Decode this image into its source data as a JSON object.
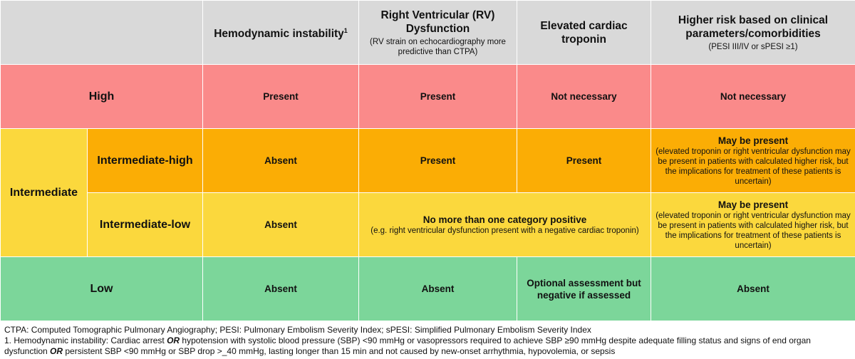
{
  "headers": {
    "hemodynamic": {
      "label": "Hemodynamic instability",
      "sup": "1"
    },
    "rv": {
      "label": "Right Ventricular (RV) Dysfunction",
      "sub": "(RV strain on echocardiography more predictive than CTPA)"
    },
    "troponin": {
      "label": "Elevated cardiac troponin"
    },
    "clinical": {
      "label": "Higher risk based on clinical parameters/comorbidities",
      "sub": "(PESI III/IV or sPESI ≥1)"
    }
  },
  "rows": {
    "high": {
      "label": "High",
      "hemodynamic": "Present",
      "rv": "Present",
      "troponin": "Not necessary",
      "clinical": "Not necessary"
    },
    "intermediate": {
      "label": "Intermediate"
    },
    "intermediate_high": {
      "label": "Intermediate-high",
      "hemodynamic": "Absent",
      "rv": "Present",
      "troponin": "Present",
      "clinical": "May be present",
      "clinical_sub": "(elevated troponin or right ventricular dysfunction may be present in patients with calculated higher risk, but the implications for treatment of these patients is uncertain)"
    },
    "intermediate_low": {
      "label": "Intermediate-low",
      "hemodynamic": "Absent",
      "rv_troponin": "No more than one category positive",
      "rv_troponin_sub": "(e.g. right ventricular dysfunction present with a negative cardiac troponin)",
      "clinical": "May be present",
      "clinical_sub": "(elevated troponin or right ventricular dysfunction may be present in patients with calculated higher risk, but the implications for treatment of these patients is uncertain)"
    },
    "low": {
      "label": "Low",
      "hemodynamic": "Absent",
      "rv": "Absent",
      "troponin": "Optional assessment but negative if assessed",
      "clinical": "Absent"
    }
  },
  "footnotes": {
    "abbrev": "CTPA: Computed Tomographic Pulmonary Angiography; PESI: Pulmonary Embolism Severity Index; sPESI: Simplified Pulmonary Embolism Severity Index",
    "note_a": "1. Hemodynamic instability: Cardiac arrest ",
    "or1": "OR",
    "note_b": " hypotension with systolic blood pressure (SBP) <90 mmHg or vasopressors required to achieve SBP ≥90 mmHg despite adequate filling status and signs of end organ dysfunction ",
    "or2": "OR",
    "note_c": " persistent SBP <90 mmHg or SBP drop >_40 mmHg, lasting longer than 15 min and not caused by new-onset arrhythmia, hypovolemia, or sepsis"
  },
  "colors": {
    "header": "#d9d9d9",
    "high": "#fa8a8a",
    "intermediate_high": "#fbad05",
    "intermediate_low": "#fbd83d",
    "low": "#7cd69a"
  }
}
